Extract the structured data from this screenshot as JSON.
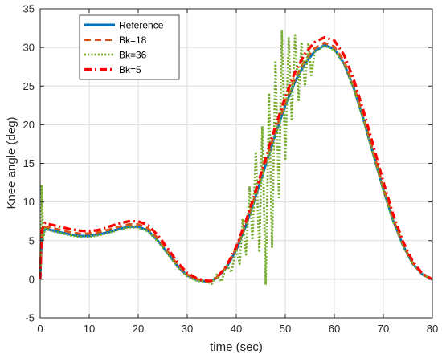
{
  "chart_data": {
    "type": "line",
    "title": "",
    "xlabel": "time (sec)",
    "ylabel": "Knee angle (deg)",
    "xlim": [
      0,
      80
    ],
    "ylim": [
      -5,
      35
    ],
    "xticks": [
      0,
      10,
      20,
      30,
      40,
      50,
      60,
      70,
      80
    ],
    "yticks": [
      -5,
      0,
      5,
      10,
      15,
      20,
      25,
      30,
      35
    ],
    "xtick_labels": [
      "0",
      "10",
      "20",
      "30",
      "40",
      "50",
      "60",
      "70",
      "80"
    ],
    "ytick_labels": [
      "-5",
      "0",
      "5",
      "10",
      "15",
      "20",
      "25",
      "30",
      "35"
    ],
    "grid": true,
    "legend_position": "top-left",
    "series": [
      {
        "name": "Reference",
        "color": "#0072BD",
        "style": "solid",
        "x": [
          0,
          0.3,
          1,
          2,
          4,
          6,
          8,
          10,
          12,
          14,
          16,
          18,
          20,
          22,
          24,
          26,
          28,
          30,
          32,
          34,
          35,
          36,
          38,
          40,
          42,
          44,
          46,
          48,
          50,
          52,
          54,
          56,
          58,
          60,
          62,
          64,
          66,
          68,
          70,
          72,
          74,
          76,
          78,
          80
        ],
        "y": [
          0,
          5.5,
          6.5,
          6.4,
          6.1,
          5.8,
          5.6,
          5.6,
          5.8,
          6.1,
          6.5,
          6.8,
          6.8,
          6.3,
          5.0,
          3.4,
          1.7,
          0.5,
          -0.1,
          -0.3,
          -0.2,
          0.2,
          1.5,
          3.8,
          7.0,
          10.8,
          14.8,
          18.8,
          22.5,
          25.6,
          27.9,
          29.5,
          30.3,
          29.8,
          27.9,
          24.7,
          20.6,
          16.1,
          11.6,
          7.6,
          4.4,
          2.0,
          0.6,
          0
        ]
      },
      {
        "name": "Bk=18",
        "color": "#D95319",
        "style": "dashed",
        "x": [
          0,
          0.3,
          1,
          2,
          4,
          6,
          8,
          10,
          12,
          14,
          16,
          18,
          20,
          22,
          24,
          26,
          28,
          30,
          32,
          34,
          35,
          36,
          38,
          40,
          42,
          44,
          46,
          48,
          50,
          52,
          54,
          56,
          58,
          60,
          62,
          64,
          66,
          68,
          70,
          72,
          74,
          76,
          78,
          80
        ],
        "y": [
          0,
          5.8,
          6.8,
          6.7,
          6.4,
          6.1,
          5.9,
          5.9,
          6.1,
          6.4,
          6.8,
          7.1,
          7.1,
          6.6,
          5.3,
          3.6,
          1.9,
          0.6,
          0.0,
          -0.3,
          -0.2,
          0.2,
          1.6,
          4.0,
          7.3,
          11.1,
          15.2,
          19.2,
          22.9,
          26.0,
          28.3,
          29.9,
          30.6,
          30.1,
          28.2,
          25.0,
          20.9,
          16.4,
          11.9,
          7.8,
          4.5,
          2.1,
          0.6,
          0
        ]
      },
      {
        "name": "Bk=36",
        "color": "#77AC30",
        "style": "dotted",
        "x": [
          0,
          0.3,
          0.6,
          1,
          2,
          4,
          6,
          8,
          10,
          12,
          14,
          16,
          18,
          20,
          22,
          24,
          26,
          28,
          30,
          32,
          34,
          35,
          36,
          37,
          38,
          39,
          40,
          40.7,
          41.3,
          42,
          42.7,
          43.3,
          44,
          44.7,
          45.3,
          46,
          46.7,
          47.3,
          48,
          48.7,
          49.3,
          50,
          50.7,
          51.3,
          52,
          52.7,
          53.3,
          54,
          54.7,
          55.3,
          56,
          58,
          60,
          62,
          64,
          66,
          68,
          70,
          72,
          74,
          76,
          78,
          80
        ],
        "y": [
          0,
          12.2,
          5.2,
          6.6,
          6.3,
          6.0,
          5.7,
          5.5,
          5.5,
          5.7,
          6.0,
          6.4,
          6.7,
          6.7,
          6.2,
          4.9,
          3.3,
          1.6,
          0.4,
          -0.2,
          -0.3,
          -0.6,
          0.6,
          -0.3,
          1.9,
          0.9,
          3.9,
          2.0,
          7.8,
          3.2,
          11.9,
          5.1,
          16.5,
          3.5,
          19.8,
          -0.7,
          24.1,
          4.2,
          28.3,
          10.6,
          32.3,
          15.6,
          31.2,
          20.7,
          31.6,
          23.2,
          30.7,
          25.0,
          30.6,
          26.4,
          29.4,
          30.2,
          29.7,
          27.8,
          24.6,
          20.5,
          16.0,
          11.5,
          7.5,
          4.3,
          2.0,
          0.6,
          0
        ]
      },
      {
        "name": "Bk=5",
        "color": "#FF0000",
        "style": "dashdot",
        "x": [
          0,
          0.3,
          1,
          2,
          4,
          6,
          8,
          10,
          12,
          14,
          16,
          18,
          20,
          22,
          24,
          26,
          28,
          30,
          32,
          34,
          35,
          36,
          38,
          40,
          42,
          44,
          46,
          48,
          50,
          52,
          54,
          56,
          58,
          60,
          62,
          64,
          66,
          68,
          70,
          72,
          74,
          76,
          78,
          80
        ],
        "y": [
          0,
          6.3,
          7.3,
          7.1,
          6.8,
          6.5,
          6.3,
          6.2,
          6.4,
          6.8,
          7.2,
          7.5,
          7.5,
          7.0,
          5.7,
          4.0,
          2.2,
          0.8,
          0.1,
          -0.2,
          -0.2,
          0.2,
          1.7,
          4.2,
          7.6,
          11.5,
          15.7,
          19.8,
          23.6,
          26.8,
          29.2,
          30.7,
          31.3,
          30.9,
          29.0,
          25.8,
          21.7,
          17.2,
          12.6,
          8.4,
          4.9,
          2.3,
          0.7,
          0
        ]
      }
    ]
  }
}
